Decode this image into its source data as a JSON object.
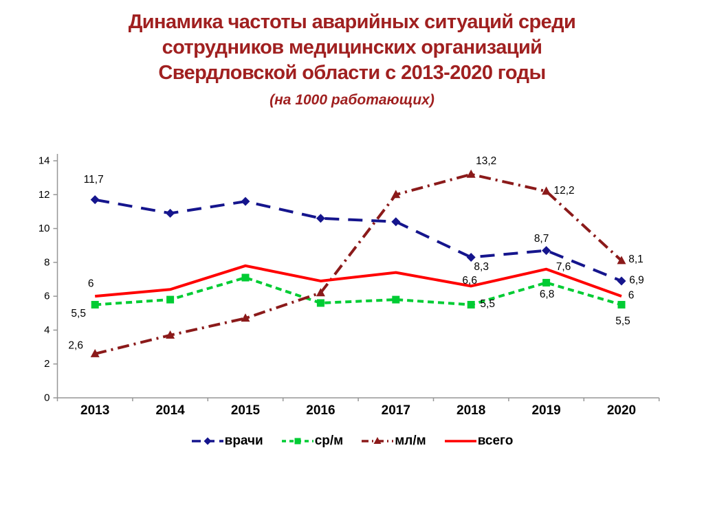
{
  "title": {
    "lines": [
      "Динамика частоты аварийных ситуаций среди",
      "сотрудников медицинских организаций",
      "Свердловской области с 2013-2020 годы"
    ],
    "subtitle": "(на 1000 работающих)",
    "color": "#A02020"
  },
  "chart_data": {
    "type": "line",
    "title": "Динамика частоты аварийных ситуаций среди сотрудников медицинских организаций Свердловской области с 2013-2020 годы (на 1000 работающих)",
    "categories": [
      "2013",
      "2014",
      "2015",
      "2016",
      "2017",
      "2018",
      "2019",
      "2020"
    ],
    "ylim": [
      0,
      14
    ],
    "ytick_step": 2,
    "grid": false,
    "legend_position": "bottom",
    "axis_color": "#969696",
    "label_color": "#000000",
    "series": [
      {
        "name": "врачи",
        "color": "#15158D",
        "line_style": "long-dash",
        "marker": "diamond",
        "values": [
          11.7,
          10.9,
          11.6,
          10.6,
          10.4,
          8.3,
          8.7,
          6.9
        ],
        "point_labels": [
          "11,7",
          "",
          "",
          "",
          "",
          "8,3",
          "8,7",
          "6,9"
        ]
      },
      {
        "name": "ср/м",
        "color": "#00CC33",
        "line_style": "short-dash",
        "marker": "square",
        "values": [
          5.5,
          5.8,
          7.1,
          5.6,
          5.8,
          5.5,
          6.8,
          5.5
        ],
        "point_labels": [
          "5,5",
          "",
          "",
          "",
          "",
          "5,5",
          "6,8",
          "5,5"
        ]
      },
      {
        "name": "мл/м",
        "color": "#8B1A1A",
        "line_style": "dash-dot",
        "marker": "triangle",
        "values": [
          2.6,
          3.7,
          4.7,
          6.2,
          12.0,
          13.2,
          12.2,
          8.1
        ],
        "point_labels": [
          "2,6",
          "",
          "",
          "",
          "",
          "13,2",
          "12,2",
          "8,1"
        ]
      },
      {
        "name": "всего",
        "color": "#FF0000",
        "line_style": "solid",
        "marker": "none",
        "values": [
          6.0,
          6.4,
          7.8,
          6.9,
          7.4,
          6.6,
          7.6,
          6.0
        ],
        "point_labels": [
          "6",
          "",
          "",
          "",
          "",
          "6,6",
          "7,6",
          "6"
        ]
      }
    ]
  }
}
